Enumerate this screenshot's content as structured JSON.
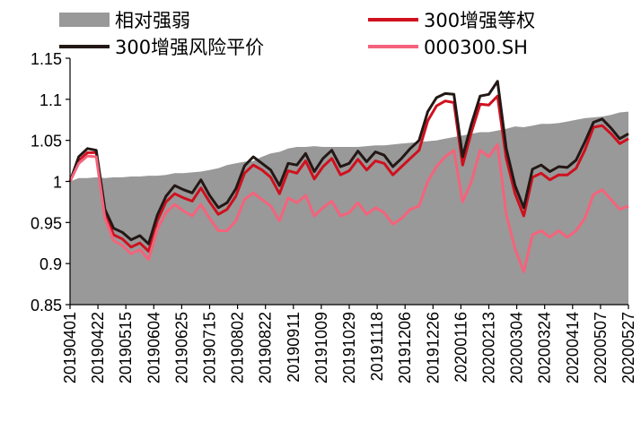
{
  "chart_data": {
    "type": "line",
    "title": "",
    "xlabel": "",
    "ylabel": "",
    "ylim": [
      0.85,
      1.15
    ],
    "yticks": [
      0.85,
      0.9,
      0.95,
      1,
      1.05,
      1.1,
      1.15
    ],
    "ytick_labels": [
      "0.85",
      "0.9",
      "0.95",
      "1",
      "1.05",
      "1.1",
      "1.15"
    ],
    "x_tick_labels": [
      "20190401",
      "20190422",
      "20190515",
      "20190604",
      "20190625",
      "20190715",
      "20190802",
      "20190822",
      "20190911",
      "20191009",
      "20191029",
      "20191118",
      "20191206",
      "20191226",
      "20200116",
      "20200213",
      "20200304",
      "20200324",
      "20200414",
      "20200507",
      "20200527"
    ],
    "grid": false,
    "legend_position": "top",
    "x_index": [
      0,
      5,
      10,
      15,
      20,
      25,
      30,
      35,
      40,
      45,
      50,
      55,
      60,
      65,
      70,
      75,
      80,
      85,
      90,
      95,
      100,
      105,
      110,
      115,
      120,
      125,
      130,
      135,
      140,
      145,
      150,
      155,
      160,
      165,
      170,
      175,
      180,
      185,
      190,
      195,
      200,
      205,
      210,
      215,
      220,
      225,
      230,
      235,
      240,
      245,
      250,
      255,
      260,
      265,
      270,
      275,
      280,
      285,
      290,
      295,
      300,
      305,
      310,
      315,
      320
    ],
    "series": [
      {
        "name": "相对强弱",
        "kind": "area",
        "color": "#999999",
        "values": [
          1.0,
          1.004,
          1.004,
          1.005,
          1.004,
          1.005,
          1.005,
          1.006,
          1.006,
          1.007,
          1.007,
          1.008,
          1.01,
          1.01,
          1.011,
          1.012,
          1.014,
          1.016,
          1.02,
          1.022,
          1.024,
          1.025,
          1.03,
          1.034,
          1.036,
          1.04,
          1.042,
          1.042,
          1.043,
          1.042,
          1.042,
          1.042,
          1.042,
          1.042,
          1.043,
          1.044,
          1.044,
          1.045,
          1.046,
          1.047,
          1.048,
          1.049,
          1.05,
          1.052,
          1.054,
          1.056,
          1.058,
          1.06,
          1.06,
          1.062,
          1.064,
          1.067,
          1.066,
          1.068,
          1.07,
          1.07,
          1.071,
          1.073,
          1.075,
          1.077,
          1.078,
          1.079,
          1.081,
          1.084,
          1.085
        ]
      },
      {
        "name": "300增强等权",
        "kind": "line",
        "color": "#d0101e",
        "values": [
          1.0,
          1.025,
          1.035,
          1.035,
          0.96,
          0.935,
          0.93,
          0.92,
          0.925,
          0.915,
          0.952,
          0.975,
          0.985,
          0.98,
          0.976,
          0.992,
          0.975,
          0.96,
          0.966,
          0.982,
          1.01,
          1.02,
          1.014,
          1.005,
          0.985,
          1.013,
          1.01,
          1.025,
          1.003,
          1.018,
          1.028,
          1.008,
          1.013,
          1.027,
          1.014,
          1.025,
          1.022,
          1.008,
          1.018,
          1.028,
          1.038,
          1.074,
          1.092,
          1.098,
          1.096,
          1.02,
          1.06,
          1.094,
          1.093,
          1.104,
          1.028,
          0.985,
          0.958,
          1.005,
          1.01,
          1.002,
          1.008,
          1.008,
          1.016,
          1.038,
          1.066,
          1.068,
          1.058,
          1.046,
          1.052
        ]
      },
      {
        "name": "300增强风险平价",
        "kind": "line",
        "color": "#231815",
        "values": [
          1.0,
          1.03,
          1.04,
          1.038,
          0.966,
          0.943,
          0.938,
          0.929,
          0.934,
          0.924,
          0.959,
          0.982,
          0.995,
          0.99,
          0.986,
          1.002,
          0.983,
          0.968,
          0.974,
          0.991,
          1.019,
          1.03,
          1.022,
          1.014,
          0.995,
          1.022,
          1.02,
          1.034,
          1.012,
          1.028,
          1.038,
          1.018,
          1.022,
          1.037,
          1.024,
          1.036,
          1.032,
          1.018,
          1.028,
          1.04,
          1.05,
          1.085,
          1.102,
          1.107,
          1.106,
          1.03,
          1.07,
          1.104,
          1.106,
          1.122,
          1.04,
          0.995,
          0.968,
          1.015,
          1.02,
          1.012,
          1.018,
          1.017,
          1.026,
          1.048,
          1.072,
          1.076,
          1.065,
          1.052,
          1.058
        ]
      },
      {
        "name": "000300.SH",
        "kind": "line",
        "color": "#f4637b",
        "values": [
          1.0,
          1.022,
          1.031,
          1.03,
          0.955,
          0.928,
          0.922,
          0.912,
          0.917,
          0.905,
          0.942,
          0.962,
          0.972,
          0.964,
          0.958,
          0.972,
          0.955,
          0.94,
          0.94,
          0.952,
          0.978,
          0.986,
          0.978,
          0.97,
          0.952,
          0.98,
          0.974,
          0.983,
          0.958,
          0.968,
          0.976,
          0.958,
          0.962,
          0.974,
          0.96,
          0.968,
          0.962,
          0.948,
          0.955,
          0.966,
          0.97,
          1.0,
          1.018,
          1.03,
          1.038,
          0.975,
          1.0,
          1.038,
          1.03,
          1.045,
          0.96,
          0.918,
          0.89,
          0.935,
          0.94,
          0.932,
          0.94,
          0.932,
          0.94,
          0.955,
          0.984,
          0.99,
          0.978,
          0.966,
          0.97
        ]
      }
    ]
  }
}
